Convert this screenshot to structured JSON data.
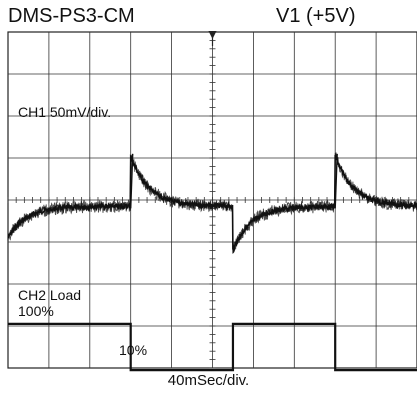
{
  "header": {
    "left_title": "DMS-PS3-CM",
    "right_title": "V1 (+5V)"
  },
  "chart_data": {
    "type": "line",
    "title": "DMS-PS3-CM V1 (+5V)",
    "xlabel": "40mSec/div.",
    "grid": true,
    "divisions": {
      "x": 10,
      "y": 8
    },
    "trigger_marker": "T",
    "ch1": {
      "label": "CH1  50mV/div.",
      "description": "output ripple / transient response",
      "peak_times_div": [
        3.0,
        8.0
      ],
      "baseline_div": 4.15,
      "peak_div": 2.95,
      "dip_div": 5.2
    },
    "ch2": {
      "label_line1": "CH2  Load",
      "label_line2": "100%",
      "low_label": "10%",
      "high_level_div": 6.95,
      "low_level_div": 8.05,
      "segments": [
        {
          "from_div": 0.0,
          "to_div": 3.0,
          "state": "100%"
        },
        {
          "from_div": 3.0,
          "to_div": 5.5,
          "state": "10%"
        },
        {
          "from_div": 5.5,
          "to_div": 8.0,
          "state": "100%"
        },
        {
          "from_div": 8.0,
          "to_div": 10.0,
          "state": "10%"
        }
      ]
    }
  }
}
